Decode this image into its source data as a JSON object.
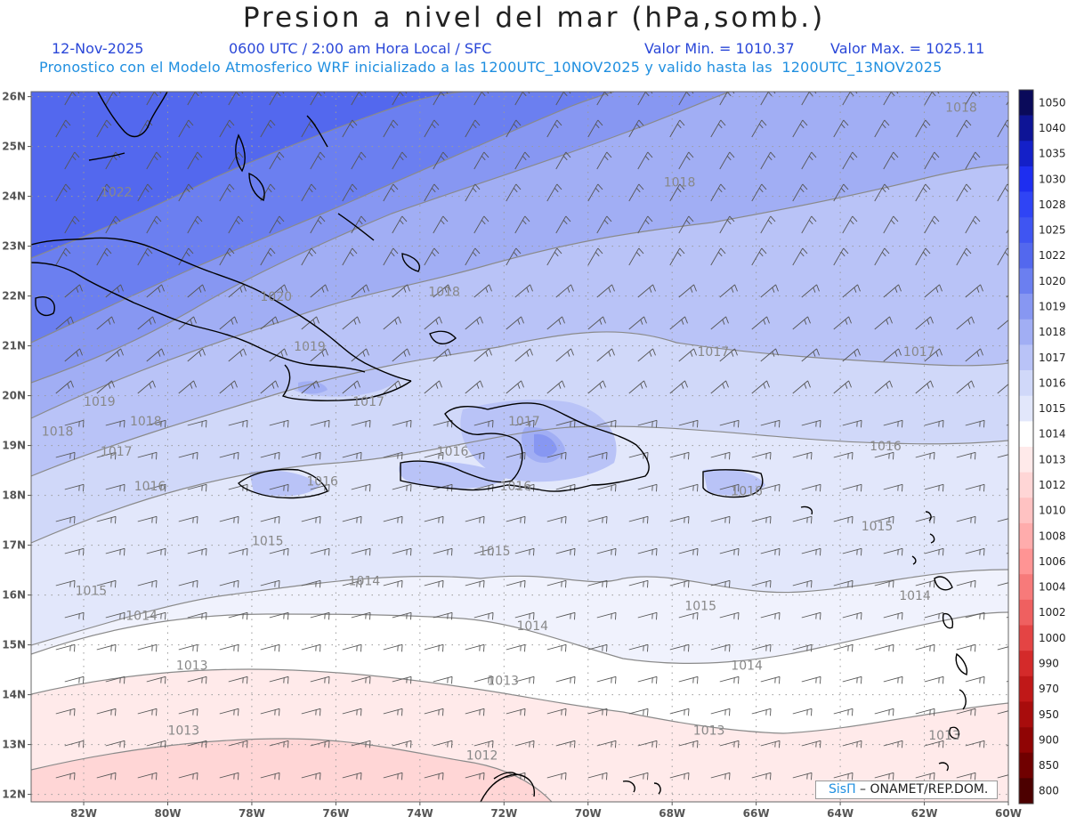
{
  "header": {
    "title": "Presion a nivel del mar (hPa,somb.)",
    "date": "12-Nov-2025",
    "time": "0600 UTC / 2:00 am Hora Local / SFC",
    "min_label": "Valor Min. = 1010.37",
    "max_label": "Valor Max. = 1025.11",
    "model_info": "Pronostico con el Modelo Atmosferico WRF inicializado a las 1200UTC_10NOV2025 y valido hasta las  1200UTC_13NOV2025"
  },
  "axes": {
    "lat_labels": [
      "26N",
      "25N",
      "24N",
      "23N",
      "22N",
      "21N",
      "20N",
      "19N",
      "18N",
      "17N",
      "16N",
      "15N",
      "14N",
      "13N",
      "12N"
    ],
    "lon_labels": [
      "82W",
      "80W",
      "78W",
      "76W",
      "74W",
      "72W",
      "70W",
      "68W",
      "66W",
      "64W",
      "62W",
      "60W"
    ]
  },
  "colorbar": {
    "labels": [
      "1050",
      "1040",
      "1035",
      "1030",
      "1028",
      "1025",
      "1022",
      "1020",
      "1019",
      "1018",
      "1017",
      "1016",
      "1015",
      "1014",
      "1013",
      "1012",
      "1010",
      "1008",
      "1006",
      "1004",
      "1002",
      "1000",
      "990",
      "970",
      "950",
      "900",
      "850",
      "800"
    ],
    "colors": [
      "#0a0a5a",
      "#0e1496",
      "#1420c8",
      "#1e2ef0",
      "#2f44f5",
      "#3f55f2",
      "#5368ee",
      "#6b7ff0",
      "#8797f2",
      "#a1aef4",
      "#b9c3f7",
      "#d0d8f9",
      "#e2e7fb",
      "#ffffff",
      "#ffeaea",
      "#ffd6d6",
      "#ffc2c2",
      "#ffacac",
      "#ff9494",
      "#f77a7a",
      "#ef6060",
      "#e44444",
      "#d42a2a",
      "#c01818",
      "#a80c0c",
      "#900404",
      "#700000",
      "#4c0000"
    ]
  },
  "isobar_labels": [
    {
      "text": "1022",
      "lon": -81.6,
      "lat": 24.0
    },
    {
      "text": "1020",
      "lon": -77.8,
      "lat": 21.9
    },
    {
      "text": "1019",
      "lon": -77.0,
      "lat": 20.9
    },
    {
      "text": "1019",
      "lon": -82.0,
      "lat": 19.8
    },
    {
      "text": "1018",
      "lon": -83.0,
      "lat": 19.2
    },
    {
      "text": "1018",
      "lon": -80.9,
      "lat": 19.4
    },
    {
      "text": "1017",
      "lon": -81.6,
      "lat": 18.8
    },
    {
      "text": "1016",
      "lon": -80.8,
      "lat": 18.1
    },
    {
      "text": "1016",
      "lon": -76.7,
      "lat": 18.2
    },
    {
      "text": "1015",
      "lon": -78.0,
      "lat": 17.0
    },
    {
      "text": "1015",
      "lon": -82.2,
      "lat": 16.0
    },
    {
      "text": "1014",
      "lon": -81.0,
      "lat": 15.5
    },
    {
      "text": "1014",
      "lon": -75.7,
      "lat": 16.2
    },
    {
      "text": "1013",
      "lon": -79.8,
      "lat": 14.5
    },
    {
      "text": "1013",
      "lon": -80.0,
      "lat": 13.2
    },
    {
      "text": "1012",
      "lon": -72.9,
      "lat": 12.7
    },
    {
      "text": "1013",
      "lon": -72.4,
      "lat": 14.2
    },
    {
      "text": "1014",
      "lon": -71.7,
      "lat": 15.3
    },
    {
      "text": "1015",
      "lon": -72.6,
      "lat": 16.8
    },
    {
      "text": "1015",
      "lon": -67.7,
      "lat": 15.7
    },
    {
      "text": "1014",
      "lon": -66.6,
      "lat": 14.5
    },
    {
      "text": "1013",
      "lon": -67.5,
      "lat": 13.2
    },
    {
      "text": "1013",
      "lon": -61.9,
      "lat": 13.1
    },
    {
      "text": "1014",
      "lon": -62.6,
      "lat": 15.9
    },
    {
      "text": "1015",
      "lon": -63.5,
      "lat": 17.3
    },
    {
      "text": "1016",
      "lon": -63.3,
      "lat": 18.9
    },
    {
      "text": "1016",
      "lon": -72.1,
      "lat": 18.1
    },
    {
      "text": "1016",
      "lon": -73.6,
      "lat": 18.8
    },
    {
      "text": "1017",
      "lon": -71.9,
      "lat": 19.4
    },
    {
      "text": "1017",
      "lon": -75.6,
      "lat": 19.8
    },
    {
      "text": "1016",
      "lon": -66.6,
      "lat": 18.0
    },
    {
      "text": "1017",
      "lon": -67.4,
      "lat": 20.8
    },
    {
      "text": "1017",
      "lon": -62.5,
      "lat": 20.8
    },
    {
      "text": "1018",
      "lon": -73.8,
      "lat": 22.0
    },
    {
      "text": "1018",
      "lon": -68.2,
      "lat": 24.2
    },
    {
      "text": "1018",
      "lon": -61.5,
      "lat": 25.7
    }
  ],
  "credit": {
    "brand": "SisΠ",
    "text": " – ONAMET/REP.DOM."
  }
}
